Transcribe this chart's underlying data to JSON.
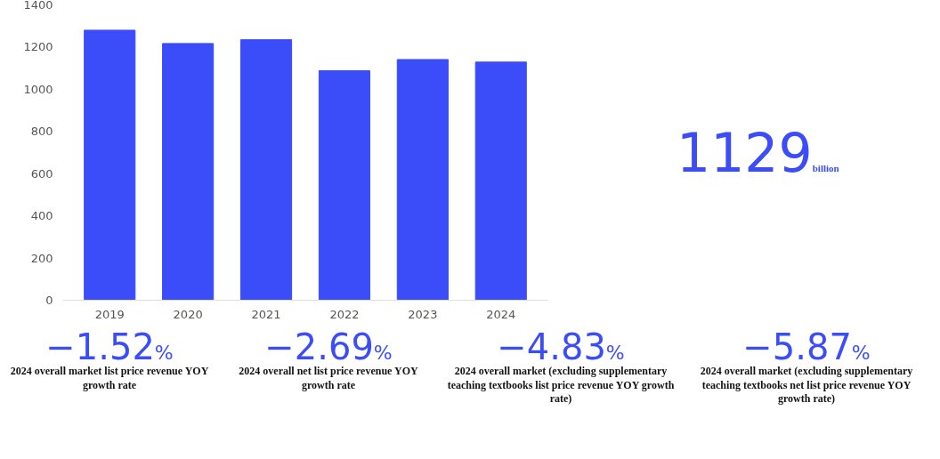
{
  "chart_data": {
    "type": "bar",
    "categories": [
      "2019",
      "2020",
      "2021",
      "2022",
      "2023",
      "2024"
    ],
    "values": [
      1280,
      1217,
      1235,
      1088,
      1141,
      1129
    ],
    "color": "#3b4cf9",
    "ylim": [
      0,
      1400
    ],
    "yticks": [
      0,
      200,
      400,
      600,
      800,
      1000,
      1200,
      1400
    ],
    "grid": false,
    "annotations": [
      "1129",
      "billion",
      "−1.52",
      "%",
      "2024 overall market list price revenue YOY growth rate",
      "−2.69",
      "%",
      "2024 overall net list price revenue YOY growth rate",
      "−4.83",
      "%",
      "2024 overall market (excluding supplementary teaching textbooks list price revenue YOY growth rate)",
      "−5.87",
      "%",
      "2024 overall market (excluding supplementary teaching textbooks net list price revenue YOY growth rate)"
    ]
  }
}
